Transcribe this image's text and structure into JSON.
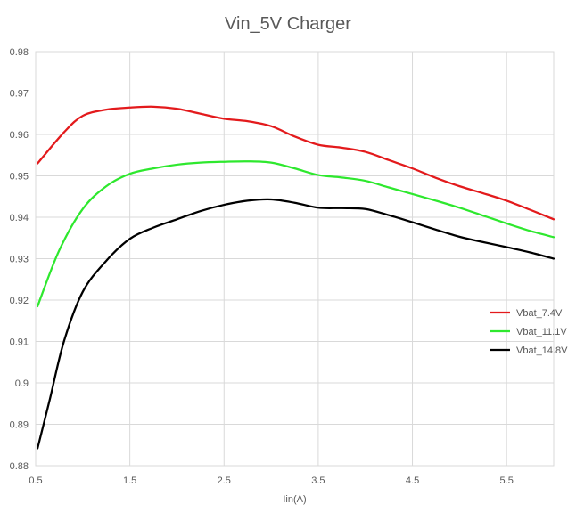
{
  "chart_data": {
    "type": "line",
    "title": "Vin_5V Charger",
    "xlabel": "Iin(A)",
    "ylabel": "",
    "xlim": [
      0.5,
      6.0
    ],
    "ylim": [
      0.88,
      0.98
    ],
    "x_ticks": [
      "0.5",
      "1.5",
      "2.5",
      "3.5",
      "4.5",
      "5.5"
    ],
    "y_ticks": [
      "0.88",
      "0.89",
      "0.9",
      "0.91",
      "0.92",
      "0.93",
      "0.94",
      "0.95",
      "0.96",
      "0.97",
      "0.98"
    ],
    "grid": true,
    "legend_position": "right",
    "series": [
      {
        "name": "Vbat_7.4V",
        "color": "#e31a1c",
        "points": [
          [
            0.52,
            0.953
          ],
          [
            0.8,
            0.9605
          ],
          [
            1.0,
            0.9645
          ],
          [
            1.25,
            0.966
          ],
          [
            1.5,
            0.9665
          ],
          [
            1.75,
            0.9667
          ],
          [
            2.0,
            0.9662
          ],
          [
            2.25,
            0.965
          ],
          [
            2.5,
            0.9638
          ],
          [
            2.75,
            0.9632
          ],
          [
            3.0,
            0.962
          ],
          [
            3.25,
            0.9595
          ],
          [
            3.5,
            0.9575
          ],
          [
            3.75,
            0.9568
          ],
          [
            4.0,
            0.9558
          ],
          [
            4.25,
            0.9538
          ],
          [
            4.5,
            0.9518
          ],
          [
            4.75,
            0.9495
          ],
          [
            5.0,
            0.9475
          ],
          [
            5.25,
            0.9458
          ],
          [
            5.5,
            0.944
          ],
          [
            5.75,
            0.9418
          ],
          [
            6.0,
            0.9395
          ]
        ]
      },
      {
        "name": "Vbat_11.1V",
        "color": "#2ee82e",
        "points": [
          [
            0.52,
            0.9185
          ],
          [
            0.75,
            0.932
          ],
          [
            1.0,
            0.942
          ],
          [
            1.25,
            0.9475
          ],
          [
            1.5,
            0.9505
          ],
          [
            1.75,
            0.9518
          ],
          [
            2.0,
            0.9527
          ],
          [
            2.25,
            0.9532
          ],
          [
            2.5,
            0.9534
          ],
          [
            2.75,
            0.9535
          ],
          [
            3.0,
            0.9532
          ],
          [
            3.25,
            0.9518
          ],
          [
            3.5,
            0.9502
          ],
          [
            3.75,
            0.9496
          ],
          [
            4.0,
            0.9488
          ],
          [
            4.25,
            0.9472
          ],
          [
            4.5,
            0.9456
          ],
          [
            4.75,
            0.944
          ],
          [
            5.0,
            0.9423
          ],
          [
            5.25,
            0.9404
          ],
          [
            5.5,
            0.9385
          ],
          [
            5.75,
            0.9367
          ],
          [
            6.0,
            0.9352
          ]
        ]
      },
      {
        "name": "Vbat_14.8V",
        "color": "#000000",
        "points": [
          [
            0.52,
            0.8842
          ],
          [
            0.65,
            0.896
          ],
          [
            0.8,
            0.91
          ],
          [
            1.0,
            0.922
          ],
          [
            1.25,
            0.9295
          ],
          [
            1.5,
            0.9348
          ],
          [
            1.75,
            0.9375
          ],
          [
            2.0,
            0.9395
          ],
          [
            2.25,
            0.9415
          ],
          [
            2.5,
            0.943
          ],
          [
            2.75,
            0.944
          ],
          [
            3.0,
            0.9443
          ],
          [
            3.25,
            0.9435
          ],
          [
            3.5,
            0.9423
          ],
          [
            3.75,
            0.9422
          ],
          [
            4.0,
            0.942
          ],
          [
            4.25,
            0.9405
          ],
          [
            4.5,
            0.9388
          ],
          [
            4.75,
            0.937
          ],
          [
            5.0,
            0.9353
          ],
          [
            5.25,
            0.934
          ],
          [
            5.5,
            0.9328
          ],
          [
            5.75,
            0.9315
          ],
          [
            6.0,
            0.93
          ]
        ]
      }
    ]
  }
}
